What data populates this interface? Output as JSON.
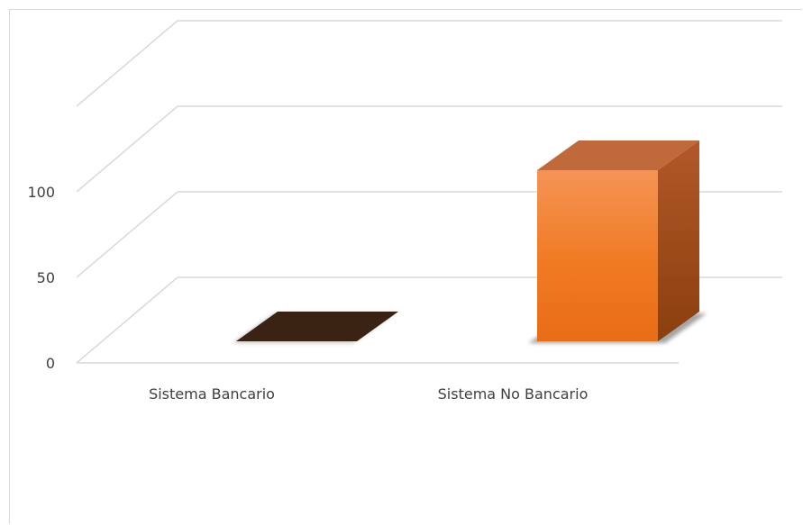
{
  "chart_data": {
    "type": "bar",
    "style": "3d-column",
    "categories": [
      "Sistema Bancario",
      "Sistema No Bancario"
    ],
    "values": [
      0,
      100
    ],
    "yticks": [
      0,
      50,
      100
    ],
    "ylim": [
      0,
      150
    ],
    "grid": true,
    "legend": "none",
    "colors": {
      "bars": [
        "#3b2314",
        "#f07f2c"
      ],
      "grid": "#d9d9d9",
      "text": "#404040"
    }
  }
}
